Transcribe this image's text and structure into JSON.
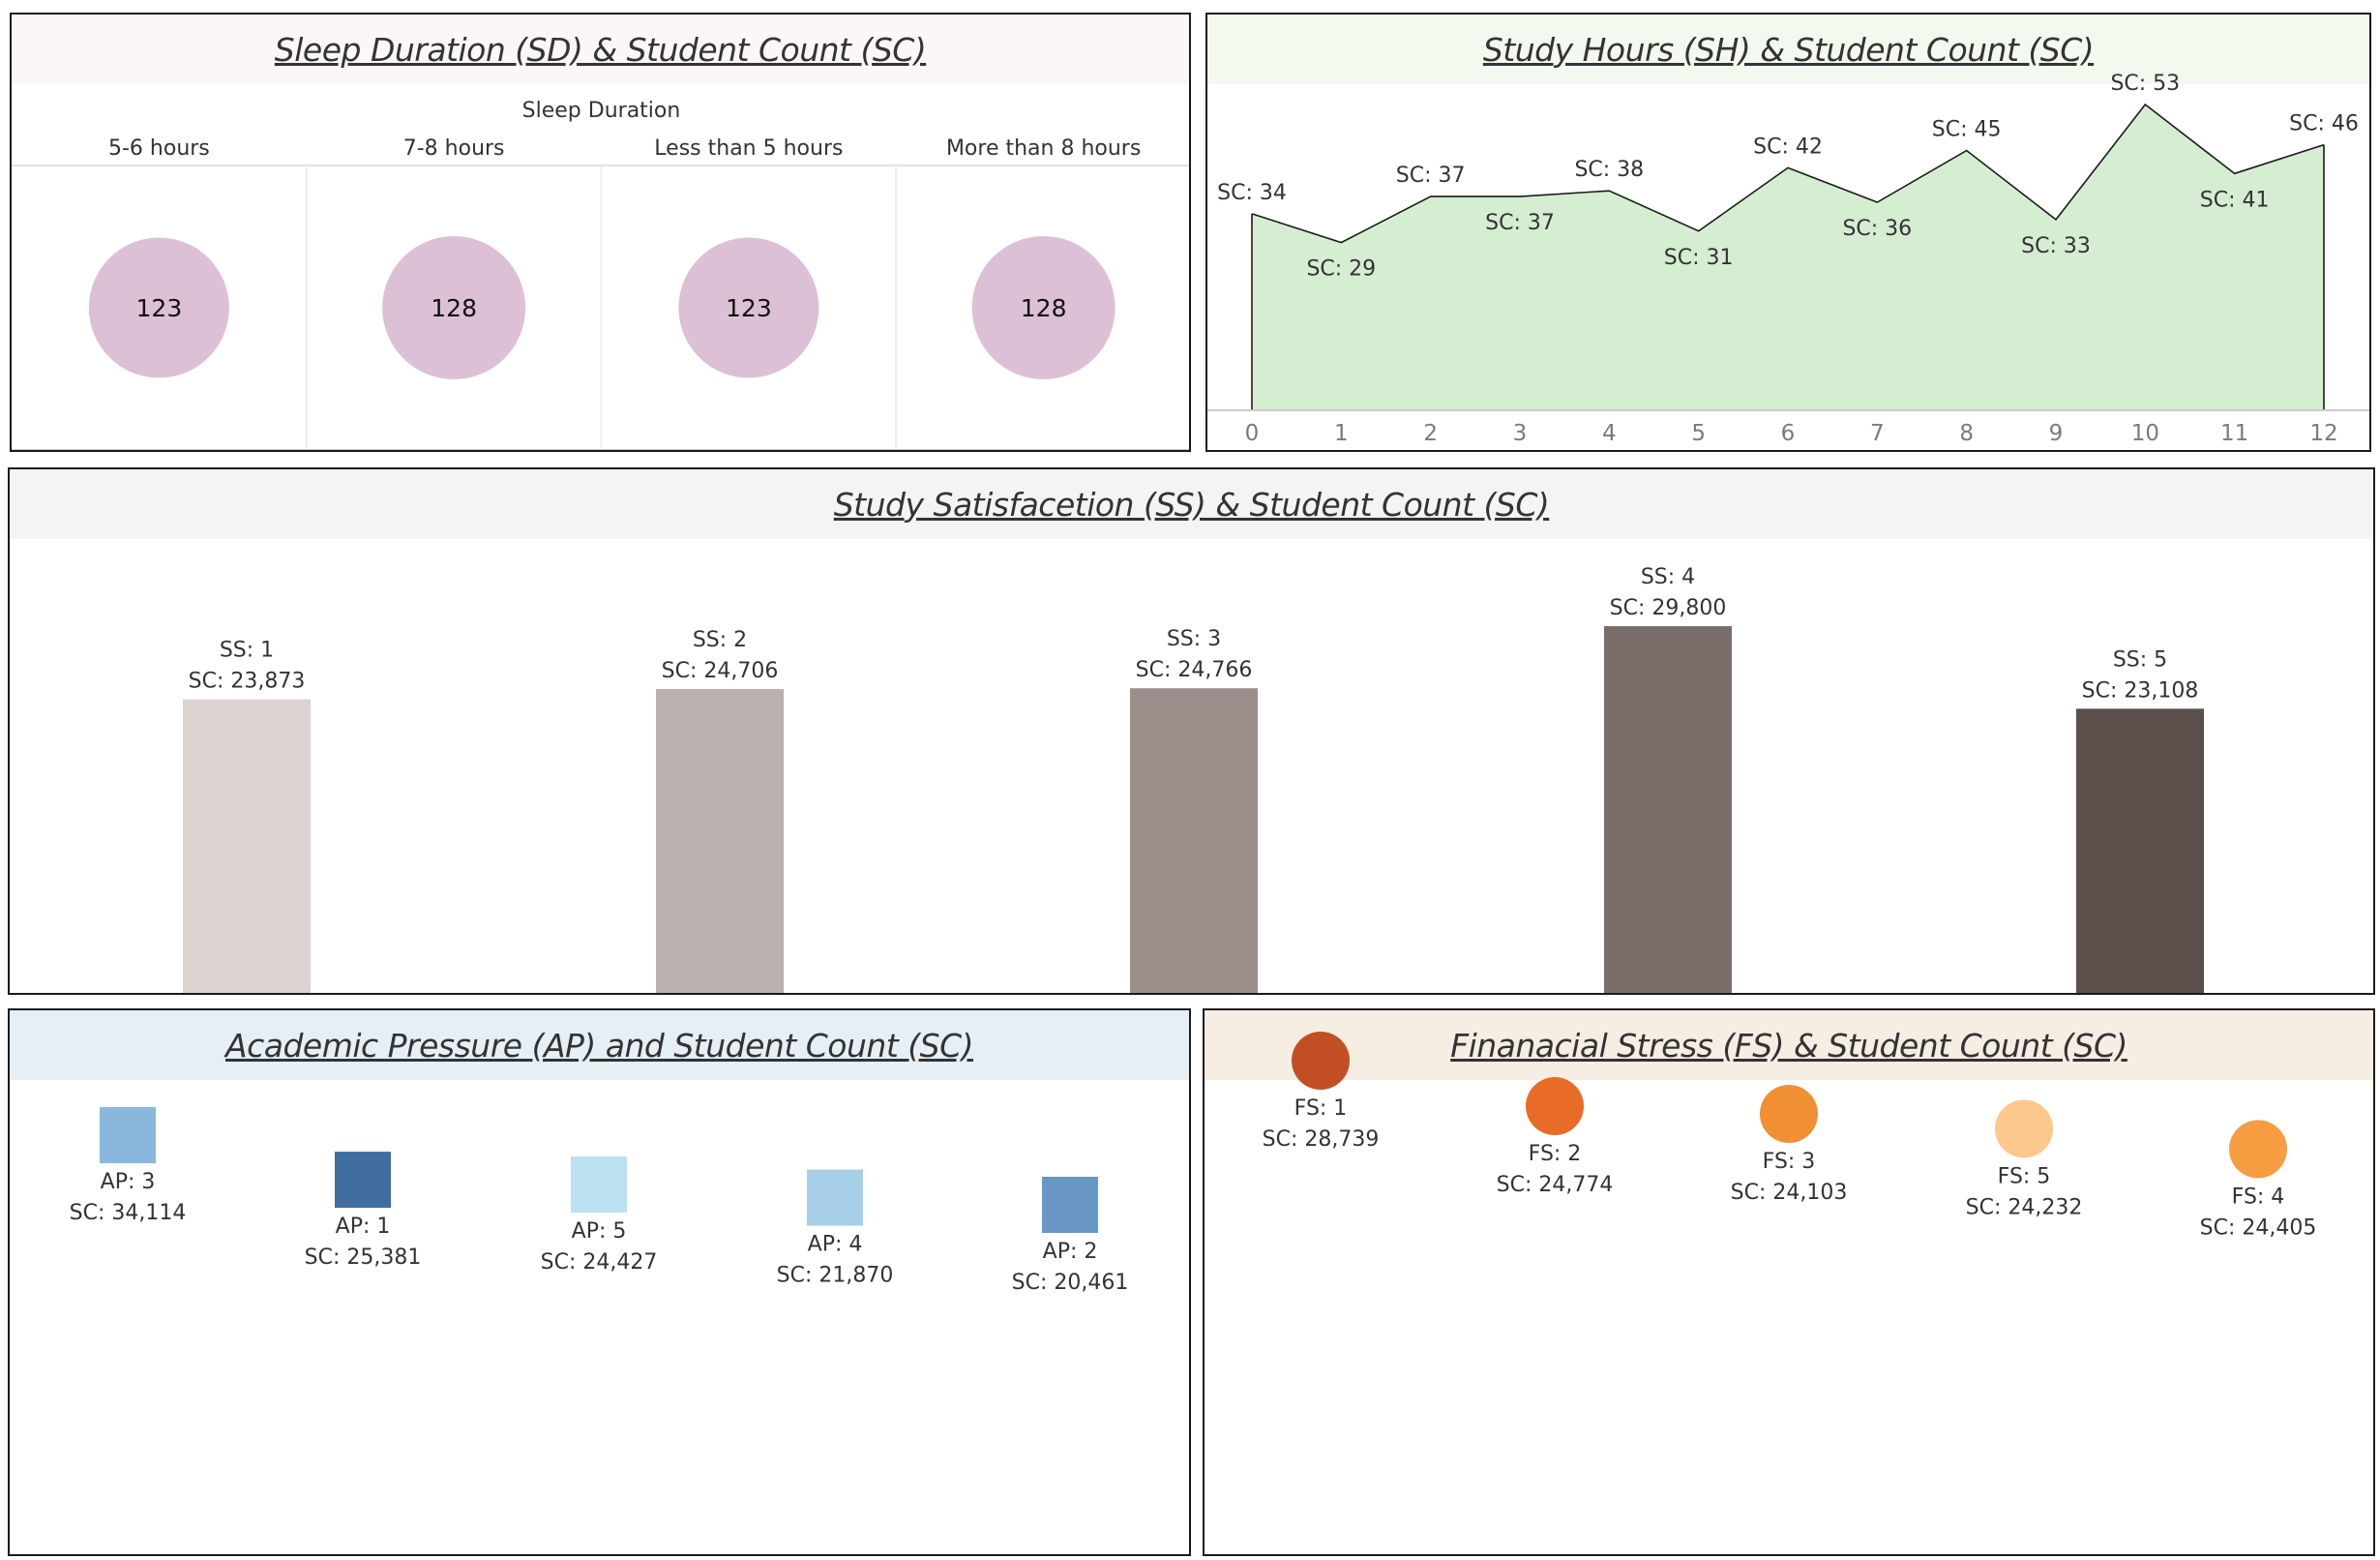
{
  "panels": {
    "sleep": {
      "title": "Sleep Duration (SD) & Student Count (SC)",
      "header_color": "#fbf6f9"
    },
    "study_hours": {
      "title": "Study Hours (SH) & Student Count (SC)",
      "header_color": "#f4f9ef"
    },
    "study_satisfaction": {
      "title": "Study Satisfacetion (SS) & Student Count (SC)",
      "header_color": "#f4f4f4"
    },
    "academic_pressure": {
      "title": "Academic Pressure (AP) and Student Count (SC)",
      "header_color": "#e6eff5"
    },
    "financial_stress": {
      "title": "Finanacial Stress (FS) & Student Count (SC)",
      "header_color": "#f6ede3"
    }
  },
  "chart_data": [
    {
      "id": "sleep",
      "type": "circle",
      "column_header": "Sleep Duration",
      "categories": [
        "5-6 hours",
        "7-8 hours",
        "Less than 5 hours",
        "More than 8 hours"
      ],
      "values": [
        123,
        128,
        123,
        128
      ],
      "color": "#dcc1d6"
    },
    {
      "id": "study_hours",
      "type": "area",
      "x": [
        0,
        1,
        2,
        3,
        4,
        5,
        6,
        7,
        8,
        9,
        10,
        11,
        12
      ],
      "values": [
        34,
        29,
        37,
        37,
        38,
        31,
        42,
        36,
        45,
        33,
        53,
        41,
        46
      ],
      "labels": [
        "SC: 34",
        "SC: 29",
        "SC: 37",
        "SC: 37",
        "SC: 38",
        "SC: 31",
        "SC: 42",
        "SC: 36",
        "SC: 45",
        "SC: 33",
        "SC: 53",
        "SC: 41",
        "SC: 46"
      ],
      "fill": "#d5edd1",
      "line": "#1a1a1a"
    },
    {
      "id": "study_satisfaction",
      "type": "bar",
      "categories": [
        "1",
        "2",
        "3",
        "4",
        "5"
      ],
      "values": [
        23873,
        24706,
        24766,
        29800,
        23108
      ],
      "labels": [
        [
          "SS: 1",
          "SC: 23,873"
        ],
        [
          "SS: 2",
          "SC: 24,706"
        ],
        [
          "SS: 3",
          "SC: 24,766"
        ],
        [
          "SS: 4",
          "SC: 29,800"
        ],
        [
          "SS: 5",
          "SC: 23,108"
        ]
      ],
      "colors": [
        "#dcd4d1",
        "#bab0ad",
        "#9a8f8b",
        "#796e6a",
        "#5a4f4b"
      ]
    },
    {
      "id": "academic_pressure",
      "type": "scatter",
      "categories": [
        "3",
        "1",
        "5",
        "4",
        "2"
      ],
      "values": [
        34114,
        25381,
        24427,
        21870,
        20461
      ],
      "labels": [
        [
          "AP: 3",
          "SC: 34,114"
        ],
        [
          "AP: 1",
          "SC: 25,381"
        ],
        [
          "AP: 5",
          "SC: 24,427"
        ],
        [
          "AP: 4",
          "SC: 21,870"
        ],
        [
          "AP: 2",
          "SC: 20,461"
        ]
      ],
      "colors": [
        "#8ab8dc",
        "#416ea0",
        "#bcdff1",
        "#a7cfe8",
        "#6797c2"
      ]
    },
    {
      "id": "financial_stress",
      "type": "scatter",
      "categories": [
        "1",
        "2",
        "3",
        "5",
        "4"
      ],
      "values": [
        28739,
        24774,
        24103,
        24232,
        24405
      ],
      "labels": [
        [
          "FS: 1",
          "SC: 28,739"
        ],
        [
          "FS: 2",
          "SC: 24,774"
        ],
        [
          "FS: 3",
          "SC: 24,103"
        ],
        [
          "FS: 5",
          "SC: 24,232"
        ],
        [
          "FS: 4",
          "SC: 24,405"
        ]
      ],
      "colors": [
        "#c24f24",
        "#e86c28",
        "#f08f33",
        "#fdc88d",
        "#f59d40"
      ]
    }
  ]
}
